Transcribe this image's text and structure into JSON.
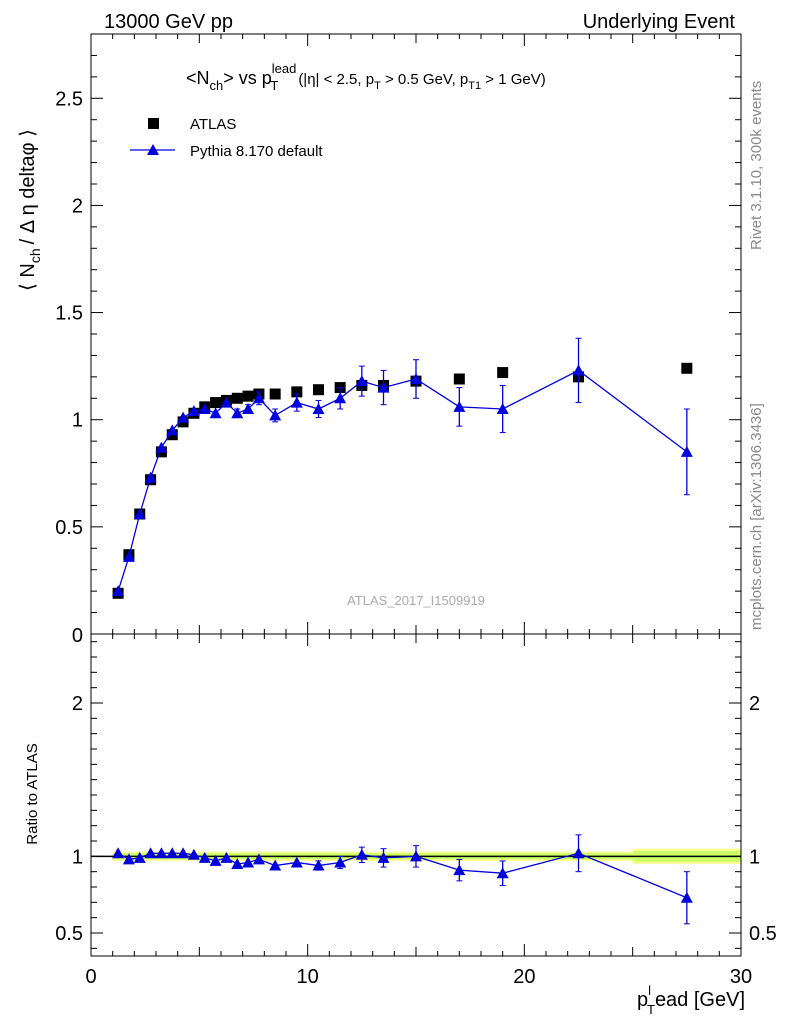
{
  "header": {
    "left": "13000 GeV pp",
    "right": "Underlying Event"
  },
  "main_title": {
    "base": "<N",
    "base_sub": "ch",
    "mid": "> vs p",
    "mid_sup": "lead",
    "mid_sub": "T",
    "paren_a": "(|η| < 2.5, p",
    "paren_a_sub": "T",
    "paren_b": " > 0.5 GeV, p",
    "paren_b_sub": "T1",
    "paren_c": " > 1 GeV)"
  },
  "y_label_top": {
    "pre": "⟨ N",
    "sub": "ch",
    "post": "/ Δ η deltaφ ⟩"
  },
  "y_label_bottom": "Ratio to ATLAS",
  "x_label": {
    "pre": "p",
    "sup": "l",
    "sub": "T",
    "post": "ead [GeV]"
  },
  "side_text": {
    "rivet": "Rivet 3.1.10,  300k events",
    "mcplots": "mcplots.cern.ch [arXiv:1306.3436]"
  },
  "watermark": "ATLAS_2017_I1509919",
  "legend": {
    "data_label": "ATLAS",
    "mc_label": "Pythia 8.170 default"
  },
  "colors": {
    "data": "#000000",
    "mc": "#0000dd",
    "band_inner": "#ccff66",
    "band_outer": "#ffff99",
    "side_text": "#888888"
  },
  "chart_data": [
    {
      "type": "scatter",
      "panel": "main",
      "xlim": [
        0,
        30
      ],
      "ylim": [
        0,
        2.8
      ],
      "yticks": [
        "0.5",
        "1",
        "1.5",
        "2",
        "2.5"
      ],
      "yticks_values": [
        0.5,
        1,
        1.5,
        2,
        2.5
      ],
      "series": [
        {
          "name": "ATLAS",
          "marker": "square",
          "x": [
            1.25,
            1.75,
            2.25,
            2.75,
            3.25,
            3.75,
            4.25,
            4.75,
            5.25,
            5.75,
            6.25,
            6.75,
            7.25,
            7.75,
            8.5,
            9.5,
            10.5,
            11.5,
            12.5,
            13.5,
            15,
            17,
            19,
            22.5,
            27.5
          ],
          "y": [
            0.19,
            0.37,
            0.56,
            0.72,
            0.85,
            0.93,
            0.99,
            1.03,
            1.06,
            1.08,
            1.09,
            1.1,
            1.11,
            1.12,
            1.12,
            1.13,
            1.14,
            1.15,
            1.16,
            1.16,
            1.18,
            1.19,
            1.22,
            1.2,
            1.24
          ]
        },
        {
          "name": "Pythia 8.170 default",
          "marker": "triangle",
          "x": [
            1.25,
            1.75,
            2.25,
            2.75,
            3.25,
            3.75,
            4.25,
            4.75,
            5.25,
            5.75,
            6.25,
            6.75,
            7.25,
            7.75,
            8.5,
            9.5,
            10.5,
            11.5,
            12.5,
            13.5,
            15,
            17,
            19,
            22.5,
            27.5
          ],
          "y": [
            0.2,
            0.36,
            0.56,
            0.73,
            0.87,
            0.95,
            1.01,
            1.04,
            1.05,
            1.03,
            1.08,
            1.03,
            1.05,
            1.1,
            1.02,
            1.08,
            1.05,
            1.1,
            1.18,
            1.15,
            1.19,
            1.06,
            1.05,
            1.23,
            0.85
          ],
          "err": [
            0.01,
            0.01,
            0.01,
            0.01,
            0.01,
            0.01,
            0.01,
            0.01,
            0.01,
            0.01,
            0.01,
            0.02,
            0.02,
            0.03,
            0.03,
            0.04,
            0.04,
            0.05,
            0.07,
            0.08,
            0.09,
            0.09,
            0.11,
            0.15,
            0.2
          ]
        }
      ]
    },
    {
      "type": "scatter",
      "panel": "ratio",
      "xlim": [
        0,
        30
      ],
      "ylim": [
        0.35,
        2.45
      ],
      "ylabel": "Ratio to ATLAS",
      "yticks": [
        "0.5",
        "1",
        "2"
      ],
      "yticks_values": [
        0.5,
        1,
        2
      ],
      "xticks": [
        "0",
        "10",
        "20",
        "30"
      ],
      "xticks_values": [
        0,
        10,
        20,
        30
      ],
      "band": {
        "x": [
          1,
          25,
          25,
          30
        ],
        "half_width_inner": [
          0.02,
          0.02,
          0.035,
          0.035
        ],
        "half_width_outer": [
          0.03,
          0.03,
          0.05,
          0.05
        ]
      },
      "series": [
        {
          "name": "Pythia 8.170 default",
          "marker": "triangle",
          "x": [
            1.25,
            1.75,
            2.25,
            2.75,
            3.25,
            3.75,
            4.25,
            4.75,
            5.25,
            5.75,
            6.25,
            6.75,
            7.25,
            7.75,
            8.5,
            9.5,
            10.5,
            11.5,
            12.5,
            13.5,
            15,
            17,
            19,
            22.5,
            27.5
          ],
          "y": [
            1.02,
            0.98,
            0.99,
            1.02,
            1.02,
            1.02,
            1.02,
            1.01,
            0.99,
            0.97,
            0.99,
            0.95,
            0.96,
            0.98,
            0.94,
            0.96,
            0.94,
            0.96,
            1.01,
            0.99,
            1.0,
            0.91,
            0.89,
            1.02,
            0.73
          ],
          "err": [
            0.01,
            0.01,
            0.01,
            0.01,
            0.01,
            0.01,
            0.01,
            0.01,
            0.01,
            0.01,
            0.01,
            0.02,
            0.02,
            0.02,
            0.02,
            0.02,
            0.03,
            0.04,
            0.05,
            0.06,
            0.07,
            0.07,
            0.08,
            0.12,
            0.17
          ]
        }
      ]
    }
  ]
}
